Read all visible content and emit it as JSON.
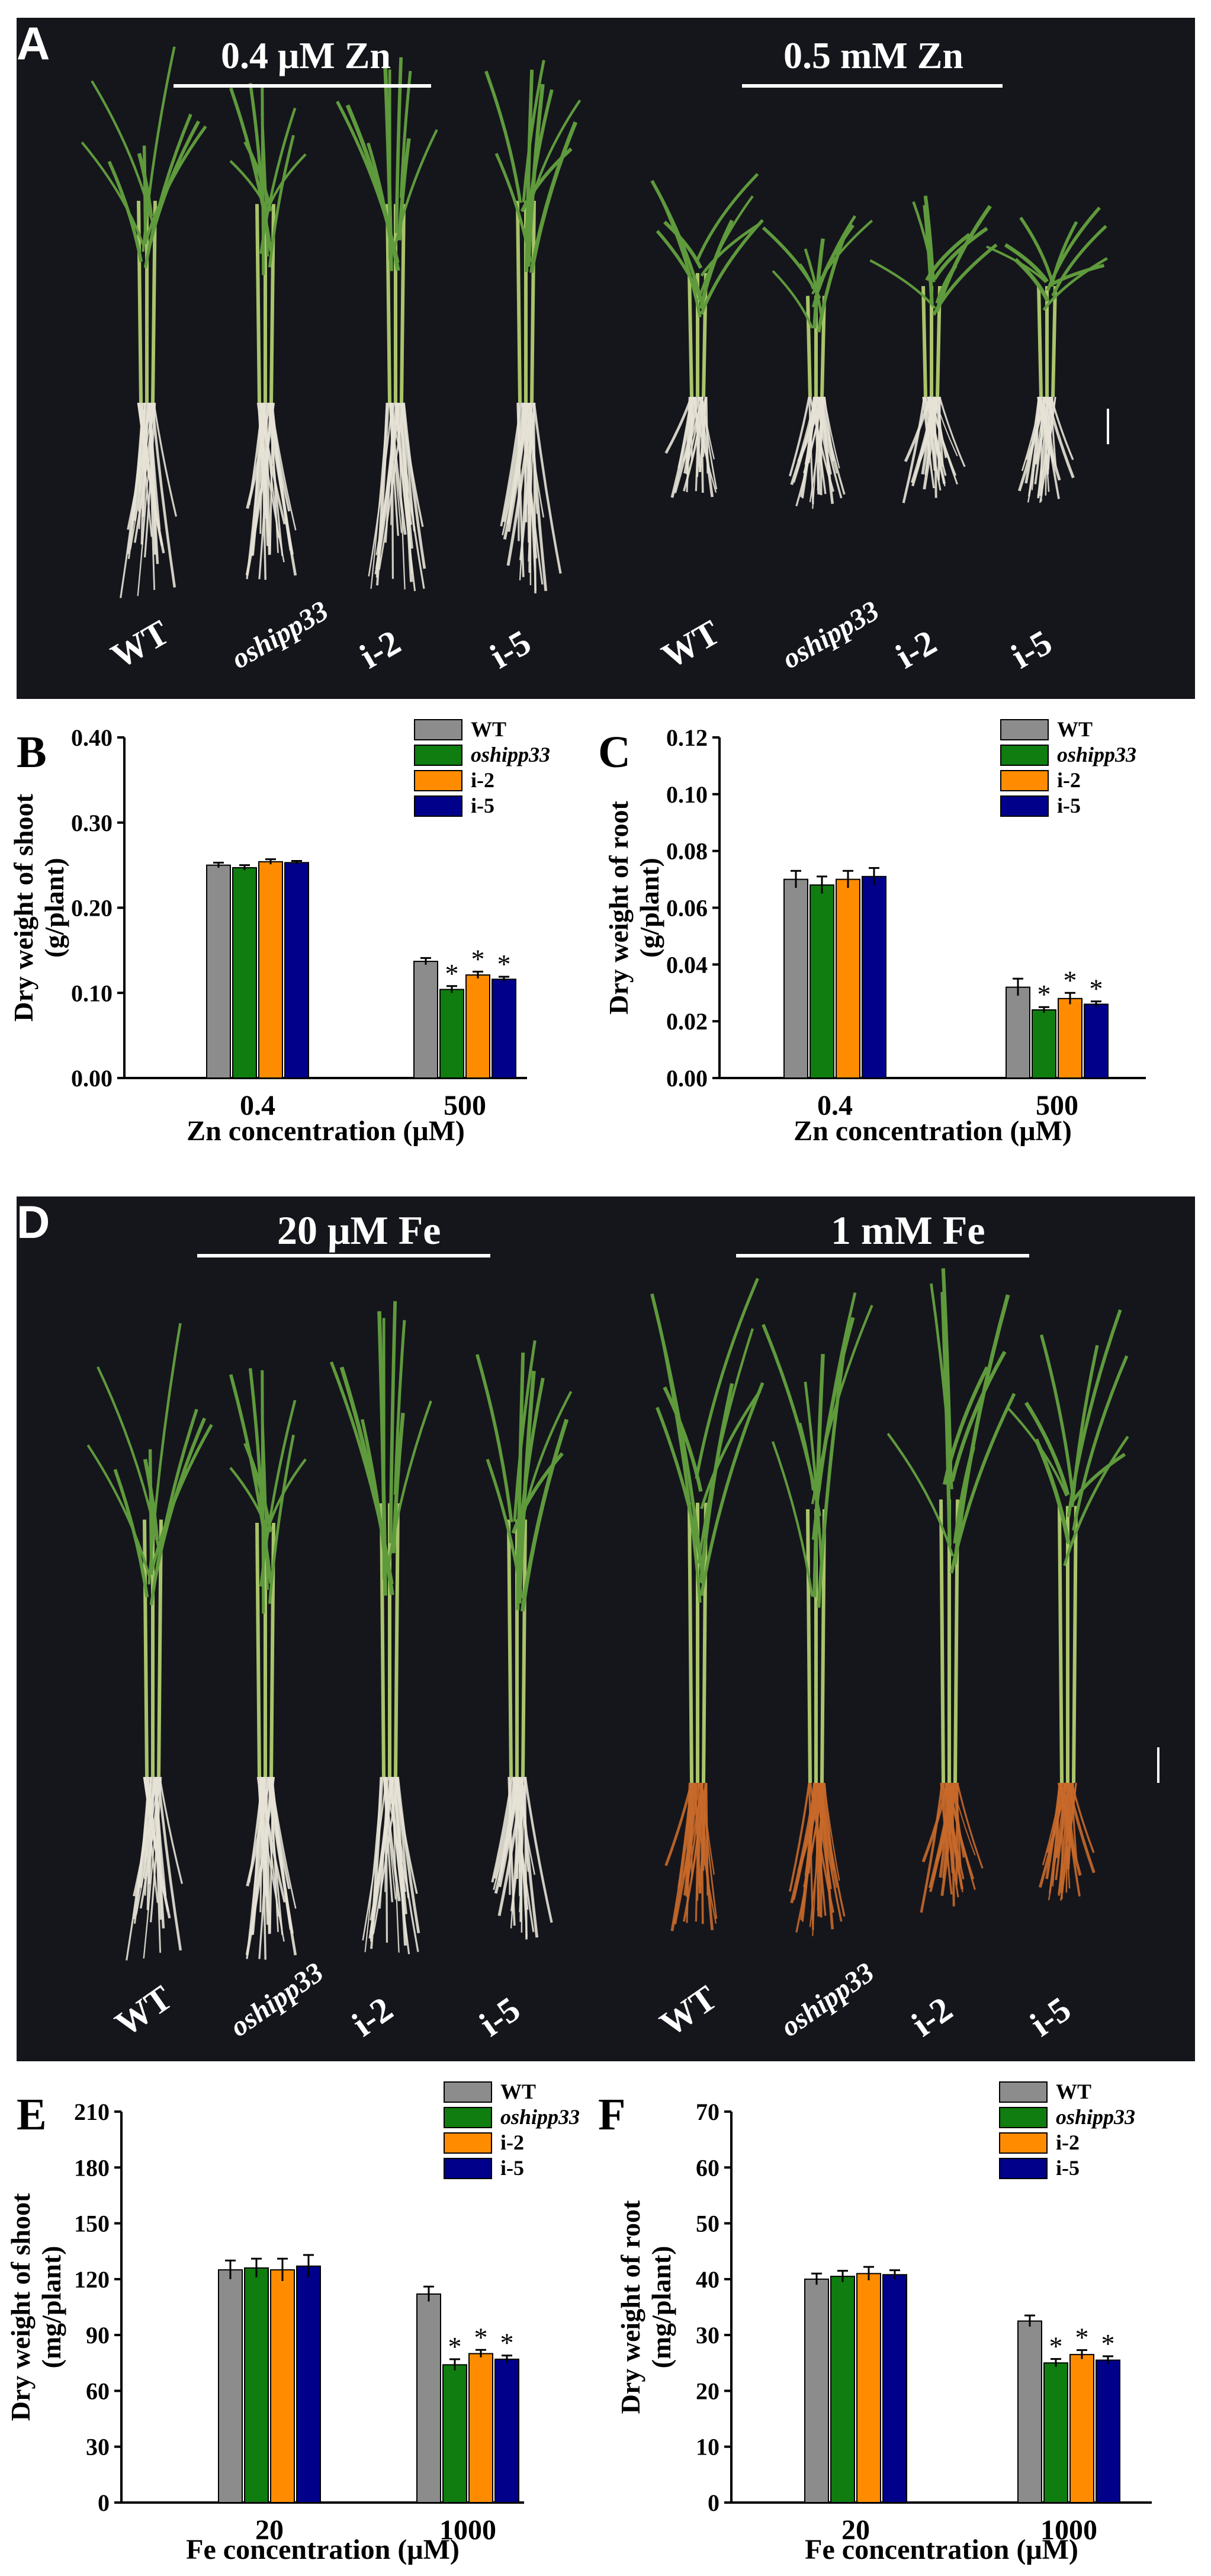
{
  "colors": {
    "wt": "#8c8c8c",
    "oshipp33": "#0f7d0f",
    "i2": "#ff8c00",
    "i5": "#00008b",
    "photo_bg": "#15161c",
    "leaf": "#5f9a3c",
    "root_white": "#e6e2d6",
    "root_orange": "#c8692a"
  },
  "panel_A": {
    "letter": "A",
    "left_treatment": "0.4 μM Zn",
    "right_treatment": "0.5 mM Zn",
    "labels": [
      "WT",
      "oshipp33",
      "i-2",
      "i-5",
      "WT",
      "oshipp33",
      "i-2",
      "i-5"
    ]
  },
  "panel_D": {
    "letter": "D",
    "left_treatment": "20 μM Fe",
    "right_treatment": "1 mM Fe",
    "labels": [
      "WT",
      "oshipp33",
      "i-2",
      "i-5",
      "WT",
      "oshipp33",
      "i-2",
      "i-5"
    ]
  },
  "chart_data": [
    {
      "panel": "B",
      "type": "bar",
      "ylabel_line1": "Dry weight of shoot",
      "ylabel_line2": "(g/plant)",
      "xlabel": "Zn concentration (μM)",
      "categories": [
        "0.4",
        "500"
      ],
      "ylim": [
        0,
        0.4
      ],
      "yticks": [
        "0.00",
        "0.10",
        "0.20",
        "0.30",
        "0.40"
      ],
      "legend_position": "top-right",
      "series": [
        {
          "name": "WT",
          "values": [
            0.25,
            0.137
          ],
          "errors": [
            0.003,
            0.004
          ],
          "sig": [
            false,
            false
          ]
        },
        {
          "name": "oshipp33",
          "values": [
            0.247,
            0.104
          ],
          "errors": [
            0.003,
            0.004
          ],
          "sig": [
            false,
            true
          ]
        },
        {
          "name": "i-2",
          "values": [
            0.254,
            0.121
          ],
          "errors": [
            0.003,
            0.004
          ],
          "sig": [
            false,
            true
          ]
        },
        {
          "name": "i-5",
          "values": [
            0.253,
            0.116
          ],
          "errors": [
            0.002,
            0.003
          ],
          "sig": [
            false,
            true
          ]
        }
      ]
    },
    {
      "panel": "C",
      "type": "bar",
      "ylabel_line1": "Dry weight of root",
      "ylabel_line2": "(g/plant)",
      "xlabel": "Zn concentration (μM)",
      "categories": [
        "0.4",
        "500"
      ],
      "ylim": [
        0,
        0.12
      ],
      "yticks": [
        "0.00",
        "0.02",
        "0.04",
        "0.06",
        "0.08",
        "0.10",
        "0.12"
      ],
      "legend_position": "top-right",
      "series": [
        {
          "name": "WT",
          "values": [
            0.07,
            0.032
          ],
          "errors": [
            0.003,
            0.003
          ],
          "sig": [
            false,
            false
          ]
        },
        {
          "name": "oshipp33",
          "values": [
            0.068,
            0.024
          ],
          "errors": [
            0.003,
            0.001
          ],
          "sig": [
            false,
            true
          ]
        },
        {
          "name": "i-2",
          "values": [
            0.07,
            0.028
          ],
          "errors": [
            0.003,
            0.002
          ],
          "sig": [
            false,
            true
          ]
        },
        {
          "name": "i-5",
          "values": [
            0.071,
            0.026
          ],
          "errors": [
            0.003,
            0.001
          ],
          "sig": [
            false,
            true
          ]
        }
      ]
    },
    {
      "panel": "E",
      "type": "bar",
      "ylabel_line1": "Dry weight of shoot",
      "ylabel_line2": "(mg/plant)",
      "xlabel": "Fe concentration (μM)",
      "categories": [
        "20",
        "1000"
      ],
      "ylim": [
        0,
        210
      ],
      "yticks": [
        "0",
        "30",
        "60",
        "90",
        "120",
        "150",
        "180",
        "210"
      ],
      "legend_position": "top-right",
      "series": [
        {
          "name": "WT",
          "values": [
            125,
            112
          ],
          "errors": [
            5,
            4
          ],
          "sig": [
            false,
            false
          ]
        },
        {
          "name": "oshipp33",
          "values": [
            126,
            74
          ],
          "errors": [
            5,
            3
          ],
          "sig": [
            false,
            true
          ]
        },
        {
          "name": "i-2",
          "values": [
            125,
            80
          ],
          "errors": [
            6,
            2
          ],
          "sig": [
            false,
            true
          ]
        },
        {
          "name": "i-5",
          "values": [
            127,
            77
          ],
          "errors": [
            6,
            2
          ],
          "sig": [
            false,
            true
          ]
        }
      ]
    },
    {
      "panel": "F",
      "type": "bar",
      "ylabel_line1": "Dry weight of root",
      "ylabel_line2": "(mg/plant)",
      "xlabel": "Fe concentration (μM)",
      "categories": [
        "20",
        "1000"
      ],
      "ylim": [
        0,
        70
      ],
      "yticks": [
        "0",
        "10",
        "20",
        "30",
        "40",
        "50",
        "60",
        "70"
      ],
      "legend_position": "top-right",
      "series": [
        {
          "name": "WT",
          "values": [
            40,
            32.5
          ],
          "errors": [
            1,
            1
          ],
          "sig": [
            false,
            false
          ]
        },
        {
          "name": "oshipp33",
          "values": [
            40.5,
            25
          ],
          "errors": [
            1,
            0.7
          ],
          "sig": [
            false,
            true
          ]
        },
        {
          "name": "i-2",
          "values": [
            41,
            26.5
          ],
          "errors": [
            1.2,
            0.8
          ],
          "sig": [
            false,
            true
          ]
        },
        {
          "name": "i-5",
          "values": [
            40.8,
            25.5
          ],
          "errors": [
            0.8,
            0.7
          ],
          "sig": [
            false,
            true
          ]
        }
      ]
    }
  ]
}
